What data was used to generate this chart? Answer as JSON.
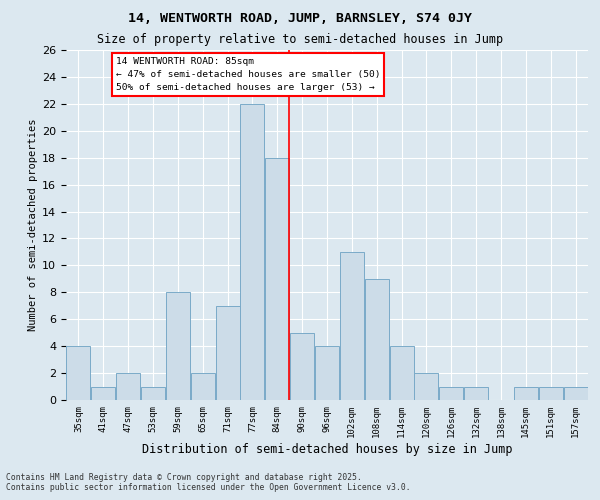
{
  "title1": "14, WENTWORTH ROAD, JUMP, BARNSLEY, S74 0JY",
  "title2": "Size of property relative to semi-detached houses in Jump",
  "xlabel": "Distribution of semi-detached houses by size in Jump",
  "ylabel": "Number of semi-detached properties",
  "bar_color": "#ccdce8",
  "bar_edge_color": "#7aaac8",
  "background_color": "#dce8f0",
  "grid_color": "#ffffff",
  "vline_color": "red",
  "categories": [
    "35sqm",
    "41sqm",
    "47sqm",
    "53sqm",
    "59sqm",
    "65sqm",
    "71sqm",
    "77sqm",
    "84sqm",
    "90sqm",
    "96sqm",
    "102sqm",
    "108sqm",
    "114sqm",
    "120sqm",
    "126sqm",
    "132sqm",
    "138sqm",
    "145sqm",
    "151sqm",
    "157sqm"
  ],
  "values": [
    4,
    1,
    2,
    1,
    8,
    2,
    7,
    22,
    18,
    5,
    4,
    11,
    9,
    4,
    2,
    1,
    1,
    0,
    1,
    1,
    1
  ],
  "n_bars": 21,
  "vline_bar_index": 8,
  "ylim": [
    0,
    26
  ],
  "yticks": [
    0,
    2,
    4,
    6,
    8,
    10,
    12,
    14,
    16,
    18,
    20,
    22,
    24,
    26
  ],
  "legend_title": "14 WENTWORTH ROAD: 85sqm",
  "legend_line1": "← 47% of semi-detached houses are smaller (50)",
  "legend_line2": "50% of semi-detached houses are larger (53) →",
  "footnote1": "Contains HM Land Registry data © Crown copyright and database right 2025.",
  "footnote2": "Contains public sector information licensed under the Open Government Licence v3.0."
}
